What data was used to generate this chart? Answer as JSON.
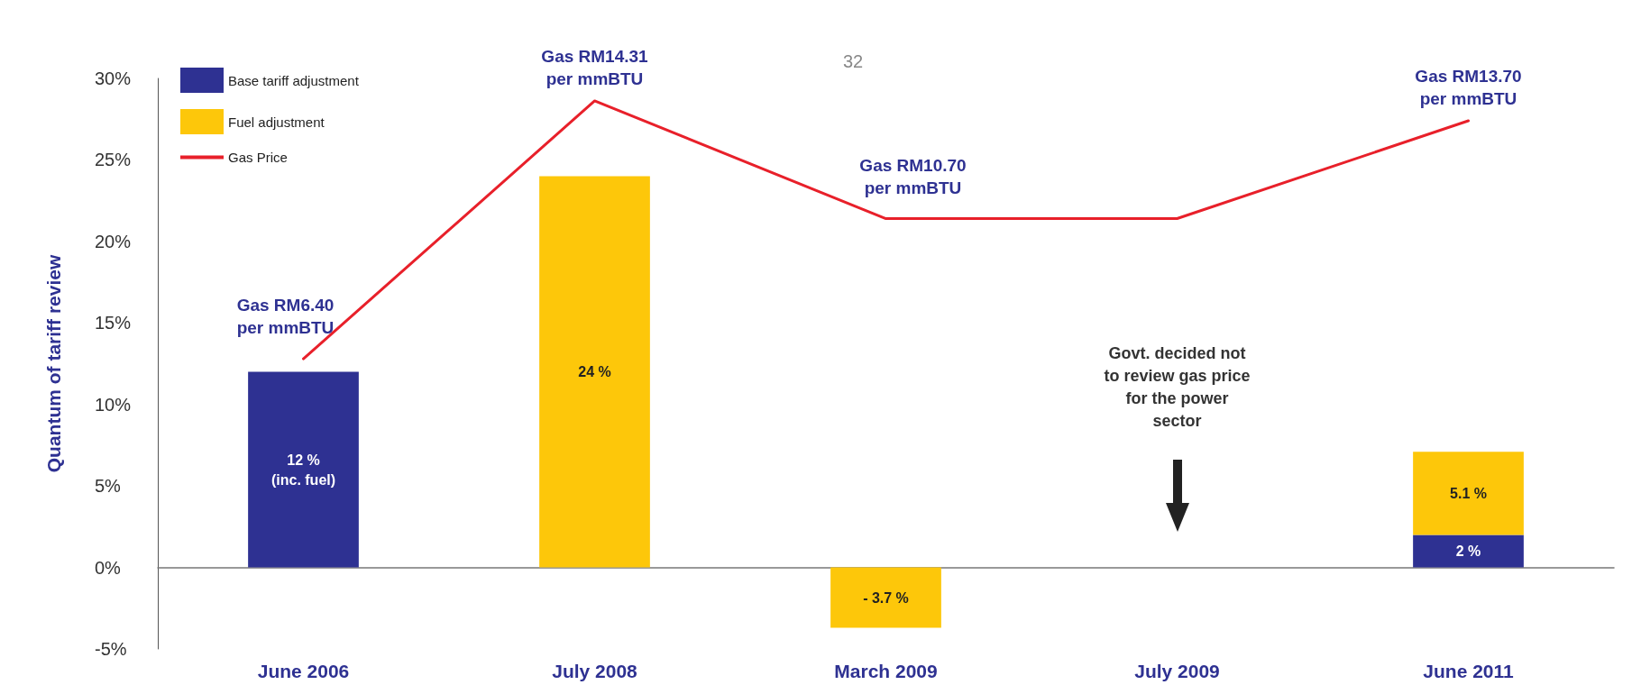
{
  "chart_data": {
    "type": "bar",
    "stacked": true,
    "ylabel": "Quantum of tariff review",
    "categories": [
      "June 2006",
      "July 2008",
      "March 2009",
      "July 2009",
      "June 2011"
    ],
    "series": [
      {
        "name": "Base tariff adjustment",
        "color": "#2e3192",
        "values": [
          12,
          null,
          null,
          null,
          2
        ],
        "value_labels": [
          "12 %\n(inc. fuel)",
          null,
          null,
          null,
          "2 %"
        ]
      },
      {
        "name": "Fuel adjustment",
        "color": "#fdc70a",
        "values": [
          null,
          24,
          -3.7,
          null,
          5.1
        ],
        "value_labels": [
          null,
          "24 %",
          "- 3.7 %",
          null,
          "5.1 %"
        ]
      },
      {
        "name": "Gas Price",
        "type": "line",
        "axis": "y2",
        "color": "#e8202a",
        "values": [
          6.4,
          14.31,
          10.7,
          10.7,
          13.7
        ],
        "value_labels": [
          "Gas RM6.40\nper mmBTU",
          "Gas RM14.31\nper mmBTU",
          "Gas RM10.70\nper mmBTU",
          null,
          "Gas RM13.70\nper mmBTU"
        ]
      }
    ],
    "ylim": [
      -5,
      30
    ],
    "yticks": [
      {
        "value": -5,
        "label": "-5%"
      },
      {
        "value": 0,
        "label": "0%"
      },
      {
        "value": 5,
        "label": "5%"
      },
      {
        "value": 10,
        "label": "10%"
      },
      {
        "value": 15,
        "label": "15%"
      },
      {
        "value": 20,
        "label": "20%"
      },
      {
        "value": 25,
        "label": "25%"
      },
      {
        "value": 30,
        "label": "30%"
      }
    ],
    "y2lim": [
      -2.5,
      15
    ],
    "tick_labels": "xy",
    "legend": "top left",
    "marker": "none",
    "annotations": [
      "32",
      "Govt. decided not\nto review gas price\nfor the power\nsector"
    ]
  }
}
